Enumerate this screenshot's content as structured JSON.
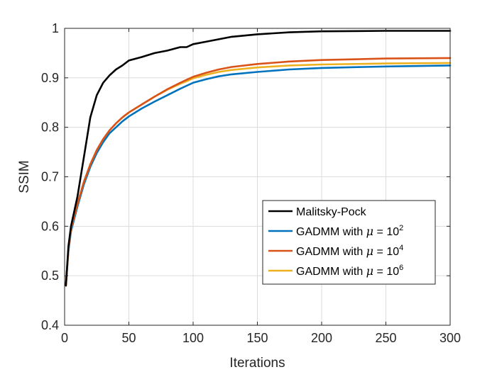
{
  "chart_data": {
    "type": "line",
    "title": "",
    "xlabel": "Iterations",
    "ylabel": "SSIM",
    "xlim": [
      0,
      300
    ],
    "ylim": [
      0.4,
      1.0
    ],
    "xticks": [
      0,
      50,
      100,
      150,
      200,
      250,
      300
    ],
    "yticks": [
      0.4,
      0.5,
      0.6,
      0.7,
      0.8,
      0.9,
      1.0
    ],
    "xtick_labels": [
      "0",
      "50",
      "100",
      "150",
      "200",
      "250",
      "300"
    ],
    "ytick_labels": [
      "0.4",
      "0.5",
      "0.6",
      "0.7",
      "0.8",
      "0.9",
      "1"
    ],
    "grid": true,
    "legend_position": "lower-right",
    "x": [
      1,
      3,
      5,
      10,
      15,
      20,
      25,
      30,
      35,
      40,
      45,
      50,
      60,
      70,
      80,
      90,
      95,
      100,
      110,
      120,
      130,
      150,
      175,
      200,
      250,
      300
    ],
    "series": [
      {
        "name": "Malitsky-Pock",
        "legend_prefix": "Malitsky-Pock",
        "legend_exp": "",
        "color": "#000000",
        "values": [
          0.48,
          0.56,
          0.6,
          0.66,
          0.74,
          0.82,
          0.865,
          0.89,
          0.905,
          0.917,
          0.925,
          0.935,
          0.942,
          0.95,
          0.955,
          0.962,
          0.962,
          0.968,
          0.973,
          0.978,
          0.983,
          0.988,
          0.992,
          0.994,
          0.995,
          0.995
        ]
      },
      {
        "name": "GADMM with μ = 10^2",
        "legend_prefix": "GADMM with",
        "legend_exp": "2",
        "color": "#0072BD",
        "values": [
          0.48,
          0.55,
          0.59,
          0.64,
          0.685,
          0.72,
          0.748,
          0.77,
          0.788,
          0.8,
          0.812,
          0.822,
          0.838,
          0.852,
          0.865,
          0.878,
          0.884,
          0.89,
          0.897,
          0.903,
          0.907,
          0.912,
          0.917,
          0.92,
          0.923,
          0.925
        ]
      },
      {
        "name": "GADMM with μ = 10^4",
        "legend_prefix": "GADMM with",
        "legend_exp": "4",
        "color": "#D95319",
        "values": [
          0.48,
          0.555,
          0.595,
          0.645,
          0.69,
          0.725,
          0.754,
          0.776,
          0.794,
          0.808,
          0.82,
          0.83,
          0.846,
          0.862,
          0.877,
          0.89,
          0.896,
          0.902,
          0.91,
          0.917,
          0.922,
          0.928,
          0.933,
          0.936,
          0.939,
          0.94
        ]
      },
      {
        "name": "GADMM with μ = 10^6",
        "legend_prefix": "GADMM with",
        "legend_exp": "6",
        "color": "#EDB120",
        "values": [
          0.48,
          0.555,
          0.595,
          0.645,
          0.69,
          0.725,
          0.754,
          0.776,
          0.794,
          0.808,
          0.82,
          0.83,
          0.846,
          0.862,
          0.876,
          0.888,
          0.893,
          0.899,
          0.906,
          0.912,
          0.916,
          0.921,
          0.925,
          0.927,
          0.929,
          0.93
        ]
      }
    ],
    "legend_mu_symbol": "μ",
    "legend_equals": "= 10"
  }
}
